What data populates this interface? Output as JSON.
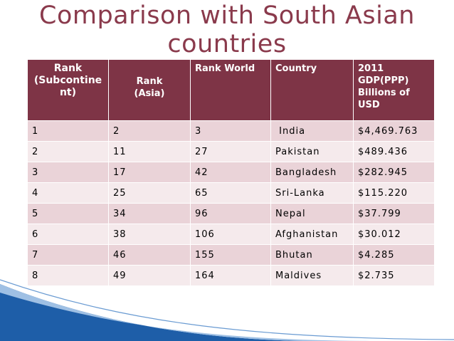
{
  "title_line1": "Comparison  with South Asian",
  "title_line2": "countries",
  "headers": {
    "rank_sub_1": "Rank",
    "rank_sub_2": "(Subcontine",
    "rank_sub_3": "nt)",
    "rank_asia_1": "Rank",
    "rank_asia_2": "(Asia)",
    "rank_world": "Rank World",
    "country": "Country",
    "gdp_1": "2011",
    "gdp_2": "GDP(PPP)",
    "gdp_3": "Billions of",
    "gdp_4": "USD"
  },
  "rows": [
    {
      "rank_sub": "1",
      "rank_asia": "2",
      "rank_world": "3",
      "country": " India",
      "gdp": "$4,469.763"
    },
    {
      "rank_sub": "2",
      "rank_asia": "11",
      "rank_world": "27",
      "country": "Pakistan",
      "gdp": "$489.436"
    },
    {
      "rank_sub": "3",
      "rank_asia": "17",
      "rank_world": "42",
      "country": "Bangladesh",
      "gdp": "$282.945"
    },
    {
      "rank_sub": "4",
      "rank_asia": "25",
      "rank_world": "65",
      "country": "Sri-Lanka",
      "gdp": "$115.220"
    },
    {
      "rank_sub": "5",
      "rank_asia": "34",
      "rank_world": "96",
      "country": "Nepal",
      "gdp": "$37.799"
    },
    {
      "rank_sub": "6",
      "rank_asia": "38",
      "rank_world": "106",
      "country": "Afghanistan",
      "gdp": "$30.012"
    },
    {
      "rank_sub": "7",
      "rank_asia": "46",
      "rank_world": "155",
      "country": "Bhutan",
      "gdp": "$4.285"
    },
    {
      "rank_sub": "8",
      "rank_asia": "49",
      "rank_world": "164",
      "country": "Maldives",
      "gdp": "$2.735"
    }
  ],
  "colors": {
    "title": "#8a3a4c",
    "header_bg": "#7e3446",
    "row_odd": "#ead3d8",
    "row_even": "#f5eaec",
    "swoosh": "#1e5ea8"
  }
}
